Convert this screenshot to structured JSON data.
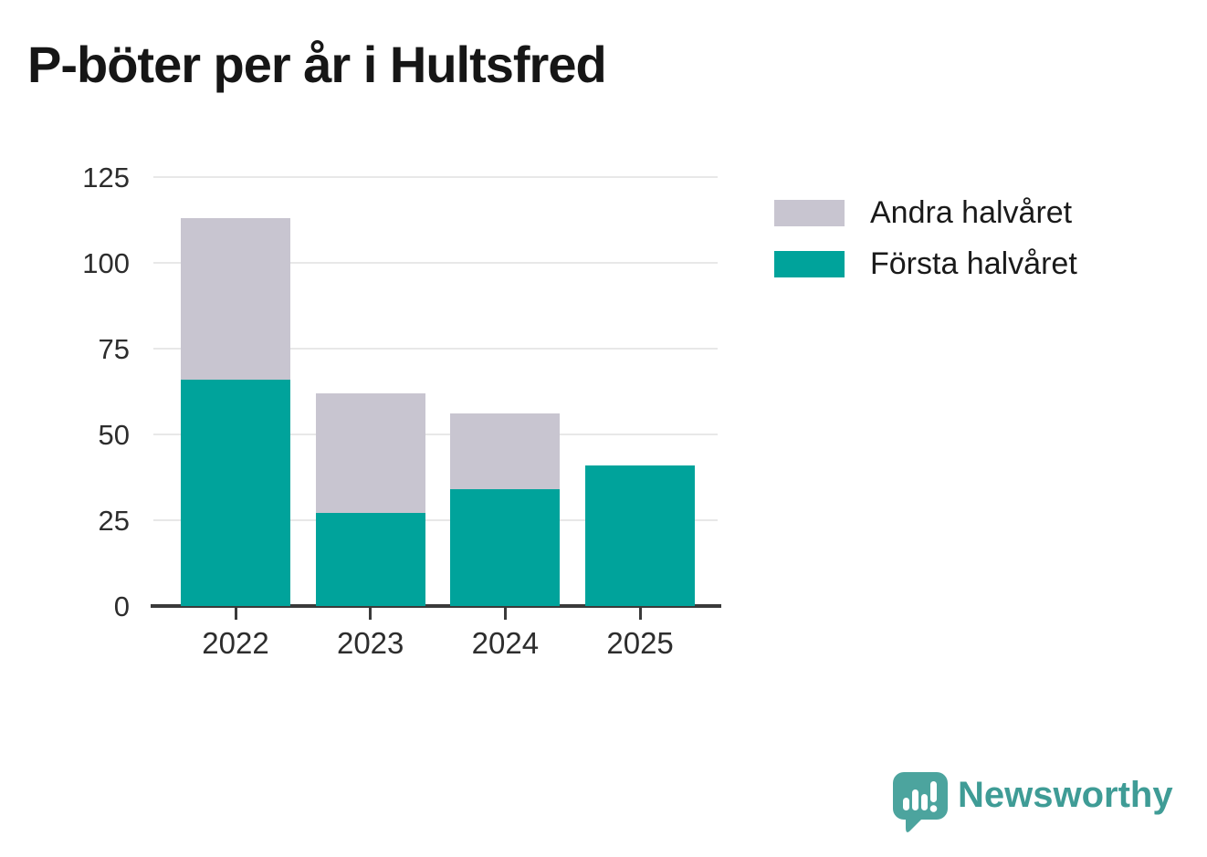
{
  "chart_data": {
    "type": "bar",
    "stacked": true,
    "title": "P-böter per år i Hultsfred",
    "categories": [
      "2022",
      "2023",
      "2024",
      "2025"
    ],
    "series": [
      {
        "name": "Första halvåret",
        "color": "#00a39b",
        "values": [
          66,
          27,
          34,
          41
        ]
      },
      {
        "name": "Andra halvåret",
        "color": "#c8c5d0",
        "values": [
          47,
          35,
          22,
          0
        ]
      }
    ],
    "totals": [
      113,
      62,
      56,
      41
    ],
    "xlabel": "",
    "ylabel": "",
    "ylim": [
      0,
      125
    ],
    "yticks": [
      0,
      25,
      50,
      75,
      100,
      125
    ],
    "grid": "horizontal",
    "legend_position": "right-of-plot"
  },
  "legend": {
    "items": [
      {
        "label": "Andra halvåret",
        "color": "#c8c5d0"
      },
      {
        "label": "Första halvåret",
        "color": "#00a39b"
      }
    ]
  },
  "branding": {
    "logo_text": "Newsworthy",
    "logo_text_color": "#3f9c96",
    "logo_bubble_color": "#4ca49e"
  },
  "colors": {
    "background": "#ffffff",
    "gridline": "#e8e8e8",
    "axis": "#3a3a3a",
    "title_text": "#161616",
    "tick_text": "#2d2d2d"
  }
}
